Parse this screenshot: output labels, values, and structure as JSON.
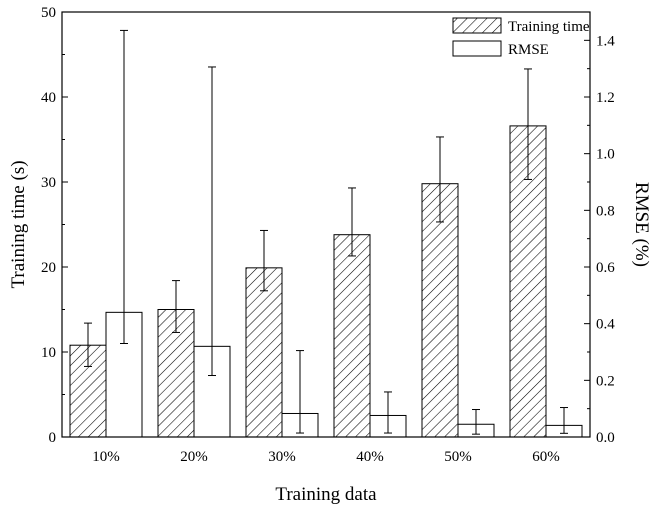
{
  "chart_data": {
    "type": "bar",
    "title": "",
    "xlabel": "Training data",
    "ylabel_left": "Training time (s)",
    "ylabel_right": "RMSE (%)",
    "categories": [
      "10%",
      "20%",
      "30%",
      "40%",
      "50%",
      "60%"
    ],
    "ylim_left": [
      0,
      50
    ],
    "ylim_right": [
      0,
      1.5
    ],
    "yticks_left": [
      "0",
      "10",
      "20",
      "30",
      "40",
      "50"
    ],
    "yticks_right": [
      "0.0",
      "0.2",
      "0.4",
      "0.6",
      "0.8",
      "1.0",
      "1.2",
      "1.4"
    ],
    "legend_position": "top-right",
    "grid": false,
    "series": [
      {
        "name": "Training time",
        "axis": "left",
        "fill": "hatched",
        "values": [
          10.8,
          15.0,
          19.9,
          23.8,
          29.8,
          36.6
        ],
        "error_low": [
          8.3,
          12.3,
          17.2,
          21.3,
          25.3,
          30.3
        ],
        "error_high": [
          13.4,
          18.4,
          24.3,
          29.3,
          35.3,
          43.3
        ]
      },
      {
        "name": "RMSE",
        "axis": "right",
        "fill": "white",
        "values": [
          0.44,
          0.32,
          0.083,
          0.076,
          0.045,
          0.041
        ],
        "error_low": [
          0.33,
          0.217,
          0.014,
          0.014,
          0.01,
          0.013
        ],
        "error_high": [
          1.435,
          1.306,
          0.305,
          0.159,
          0.097,
          0.104
        ]
      }
    ]
  }
}
